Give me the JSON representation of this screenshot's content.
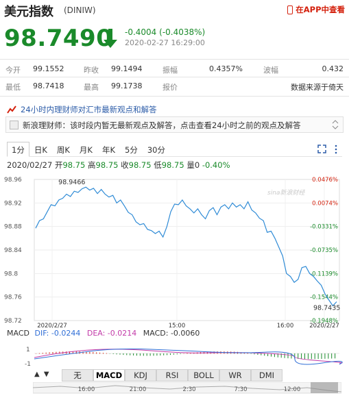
{
  "header": {
    "title": "美元指数",
    "code": "(DINIW)",
    "app_link": "在APP中查看"
  },
  "quote": {
    "price": "98.7490",
    "change": "-0.4004 (-0.4038%)",
    "timestamp": "2020-02-27 16:29:00"
  },
  "stats": {
    "row1": [
      {
        "label": "今开",
        "value": "99.1552"
      },
      {
        "label": "昨收",
        "value": "99.1494"
      },
      {
        "label": "振幅",
        "value": "0.4357%"
      },
      {
        "label": "波幅",
        "value": "0.432"
      }
    ],
    "row2": [
      {
        "label": "最低",
        "value": "98.7418"
      },
      {
        "label": "最高",
        "value": "99.1738"
      },
      {
        "label": "报价",
        "value": "数据来源于倚天"
      }
    ]
  },
  "news": {
    "heading": "24小时内理财师对汇市最新观点和解答",
    "message": "新浪理财师：该时段内暂无最新观点及解答，点击查看24小时之前的观点及解答"
  },
  "tabs": [
    "1分",
    "日K",
    "周K",
    "月K",
    "年K",
    "5分",
    "30分"
  ],
  "active_tab": "1分",
  "quote_line": {
    "date": "2020/02/27",
    "open_label": "开",
    "open": "98.75",
    "high_label": "高",
    "high": "98.75",
    "close_label": "收",
    "close": "98.75",
    "low_label": "低",
    "low": "98.75",
    "vol_label": "量",
    "vol": "0",
    "pct": "-0.40%"
  },
  "chart_data": {
    "type": "line",
    "y_ticks": [
      "98.96",
      "98.92",
      "98.88",
      "98.84",
      "98.8",
      "98.76",
      "98.72"
    ],
    "ylim": [
      98.72,
      98.96
    ],
    "pct_ticks": [
      "0.0476%",
      "0.0074%",
      "-0.0331%",
      "-0.0735%",
      "-0.1139%",
      "-0.1544%",
      "-0.1948%"
    ],
    "x_ticks": [
      "2020/2/27",
      "15:00",
      "16:00",
      "2020/2/27"
    ],
    "max_label": "98.9466",
    "last_label": "98.7435",
    "watermark": "sina新浪财经",
    "series": [
      {
        "values": [
          98.877,
          98.89,
          98.893,
          98.905,
          98.917,
          98.915,
          98.925,
          98.928,
          98.935,
          98.931,
          98.94,
          98.938,
          98.944,
          98.947,
          98.942,
          98.945,
          98.936,
          98.943,
          98.935,
          98.93,
          98.933,
          98.92,
          98.925,
          98.915,
          98.904,
          98.9,
          98.888,
          98.883,
          98.885,
          98.875,
          98.873,
          98.868,
          98.872,
          98.862,
          98.88,
          98.905,
          98.918,
          98.917,
          98.925,
          98.915,
          98.91,
          98.903,
          98.91,
          98.9,
          98.893,
          98.907,
          98.912,
          98.9,
          98.913,
          98.917,
          98.91,
          98.92,
          98.913,
          98.917,
          98.91,
          98.922,
          98.908,
          98.903,
          98.894,
          98.89,
          98.87,
          98.872,
          98.86,
          98.845,
          98.83,
          98.8,
          98.795,
          98.785,
          98.79,
          98.81,
          98.812,
          98.8,
          98.795,
          98.787,
          98.78,
          98.765,
          98.755,
          98.745,
          98.752
        ]
      }
    ]
  },
  "macd": {
    "label": "MACD",
    "dif": "DIF: -0.0244",
    "dea": "DEA: -0.0214",
    "macd": "MACD: -0.0060",
    "y_ticks": [
      "1",
      "-1"
    ]
  },
  "indicator_tabs": [
    "无",
    "MACD",
    "KDJ",
    "RSI",
    "BOLL",
    "WR",
    "DMI"
  ],
  "active_indicator": "MACD",
  "nav_axis": [
    "16:00",
    "21:00",
    "2:30",
    "7:30",
    "12:00"
  ],
  "colors": {
    "down": "#1a8a2a",
    "up": "#d4220e",
    "line": "#2f8bd6"
  }
}
